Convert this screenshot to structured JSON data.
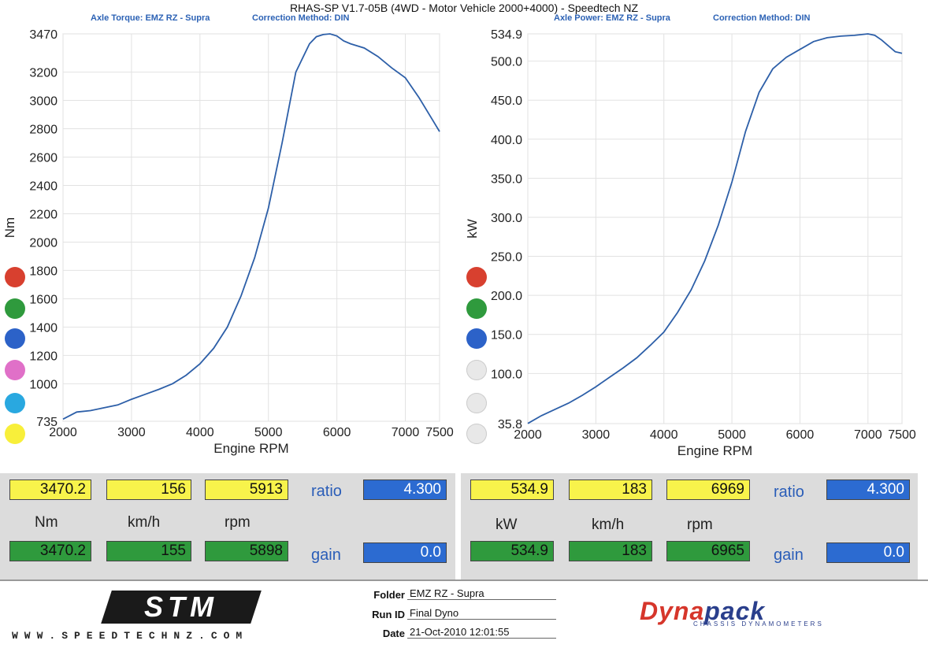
{
  "header": {
    "title": "RHAS-SP V1.7-05B  (4WD - Motor Vehicle 2000+4000) - Speedtech NZ",
    "left_subtitle": "Axle Torque: EMZ RZ - Supra",
    "left_method": "Correction Method: DIN",
    "right_subtitle": "Axle Power: EMZ RZ - Supra",
    "right_method": "Correction Method: DIN"
  },
  "legend_colors": [
    "#d8402f",
    "#2f9a3d",
    "#2c62c8",
    "#e070c8",
    "#29a8e0",
    "#f8ef3a"
  ],
  "legend_colors_right": [
    "#d8402f",
    "#2f9a3d",
    "#2c62c8",
    "#e8e8e8",
    "#e8e8e8",
    "#e8e8e8"
  ],
  "chart_data": [
    {
      "type": "line",
      "xlabel": "Engine RPM",
      "ylabel": "Nm",
      "xlim": [
        2000,
        7500
      ],
      "ylim": [
        735,
        3470
      ],
      "xticks": [
        "2000",
        "3000",
        "4000",
        "5000",
        "6000",
        "7000",
        "7500"
      ],
      "yticks": [
        "735",
        "1000",
        "1200",
        "1400",
        "1600",
        "1800",
        "2000",
        "2200",
        "2400",
        "2600",
        "2800",
        "3000",
        "3200",
        "3470"
      ],
      "line_color": "#2d5fa8",
      "series": [
        {
          "x": [
            2000,
            2200,
            2400,
            2600,
            2800,
            3000,
            3200,
            3400,
            3600,
            3800,
            4000,
            4200,
            4400,
            4600,
            4800,
            5000,
            5200,
            5400,
            5600,
            5700,
            5800,
            5900,
            6000,
            6100,
            6200,
            6400,
            6600,
            6800,
            7000,
            7200,
            7400,
            7500
          ],
          "values": [
            750,
            800,
            810,
            830,
            850,
            890,
            925,
            960,
            1000,
            1060,
            1140,
            1250,
            1400,
            1620,
            1890,
            2240,
            2700,
            3200,
            3400,
            3450,
            3465,
            3470,
            3455,
            3420,
            3400,
            3370,
            3310,
            3230,
            3160,
            3020,
            2860,
            2780
          ]
        }
      ]
    },
    {
      "type": "line",
      "xlabel": "Engine RPM",
      "ylabel": "kW",
      "xlim": [
        2000,
        7500
      ],
      "ylim": [
        35.8,
        534.9
      ],
      "xticks": [
        "2000",
        "3000",
        "4000",
        "5000",
        "6000",
        "7000",
        "7500"
      ],
      "yticks": [
        "35.8",
        "100.0",
        "150.0",
        "200.0",
        "250.0",
        "300.0",
        "350.0",
        "400.0",
        "450.0",
        "500.0",
        "534.9"
      ],
      "line_color": "#2d5fa8",
      "series": [
        {
          "x": [
            2000,
            2200,
            2400,
            2600,
            2800,
            3000,
            3200,
            3400,
            3600,
            3800,
            4000,
            4200,
            4400,
            4600,
            4800,
            5000,
            5200,
            5400,
            5600,
            5800,
            6000,
            6200,
            6400,
            6600,
            6800,
            7000,
            7100,
            7200,
            7400,
            7500
          ],
          "values": [
            36,
            46,
            54,
            62,
            72,
            83,
            95,
            107,
            120,
            136,
            153,
            178,
            207,
            244,
            290,
            345,
            410,
            460,
            490,
            505,
            515,
            525,
            530,
            532,
            533,
            534.9,
            533,
            527,
            512,
            510
          ]
        }
      ]
    }
  ],
  "left_readout": {
    "row1": [
      "3470.2",
      "156",
      "5913"
    ],
    "units": [
      "Nm",
      "km/h",
      "rpm"
    ],
    "row2": [
      "3470.2",
      "155",
      "5898"
    ],
    "ratio_label": "ratio",
    "ratio_value": "4.300",
    "gain_label": "gain",
    "gain_value": "0.0"
  },
  "right_readout": {
    "row1": [
      "534.9",
      "183",
      "6969"
    ],
    "units": [
      "kW",
      "km/h",
      "rpm"
    ],
    "row2": [
      "534.9",
      "183",
      "6965"
    ],
    "ratio_label": "ratio",
    "ratio_value": "4.300",
    "gain_label": "gain",
    "gain_value": "0.0"
  },
  "footer": {
    "logo": "STM",
    "website": "WWW.SPEEDTECHNZ.COM",
    "folder_label": "Folder",
    "folder_value": "EMZ RZ - Supra",
    "runid_label": "Run ID",
    "runid_value": "Final Dyno",
    "date_label": "Date",
    "date_value": "21-Oct-2010  12:01:55",
    "brand_a": "Dyna",
    "brand_b": "pack",
    "brand_sub": "CHASSIS DYNAMOMETERS"
  }
}
